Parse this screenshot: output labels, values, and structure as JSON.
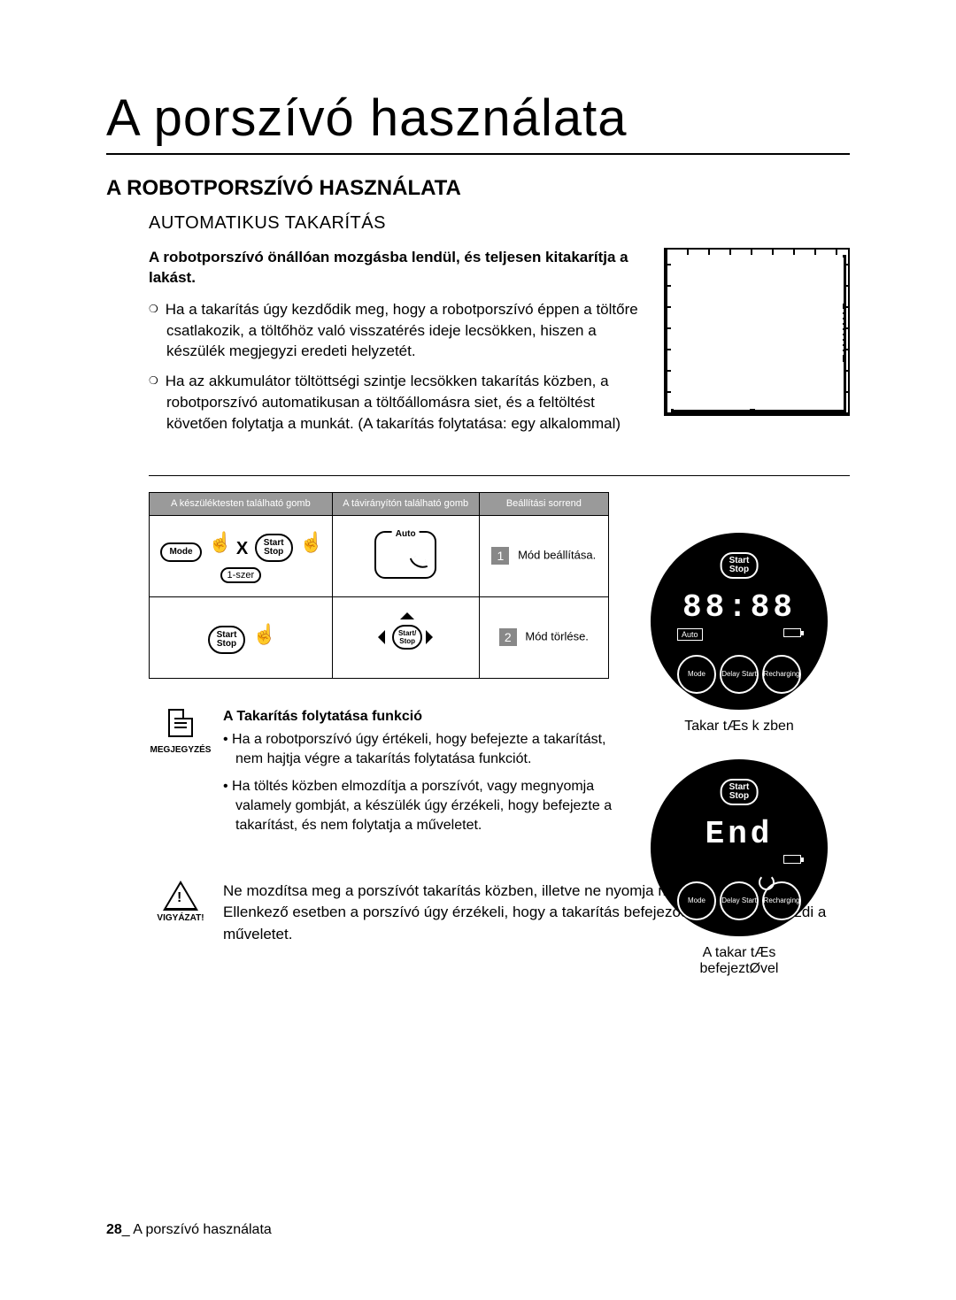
{
  "title": "A porszívó használata",
  "section_heading": "A ROBOTPORSZÍVÓ HASZNÁLATA",
  "subheading": "AUTOMATIKUS TAKARÍTÁS",
  "intro_bold": "A robotporszívó önállóan mozgásba lendül, és teljesen kitakarítja a lakást.",
  "bullet1": "Ha a takarítás úgy kezdődik meg, hogy a robotporszívó éppen a töltőre csatlakozik, a töltőhöz való visszatérés ideje lecsökken, hiszen a készülék megjegyzi eredeti helyzetét.",
  "bullet2": "Ha az akkumulátor töltöttségi szintje lecsökken takarítás közben, a robotporszívó automatikusan a töltőállomásra siet, és a feltöltést követően folytatja a munkát. (A takarítás folytatása: egy alkalommal)",
  "table": {
    "headers": {
      "main_unit": "A készüléktesten található gomb",
      "remote": "A távirányítón található gomb",
      "sequence": "Beállítási sorrend"
    },
    "row1": {
      "step_num": "1",
      "step_text": "Mód beállítása.",
      "mode_label": "Mode",
      "start_stop_label_a": "Start",
      "start_stop_label_b": "Stop",
      "plus": "X",
      "one_szer": "1-szer",
      "auto_label": "Auto"
    },
    "row2": {
      "step_num": "2",
      "step_text": "Mód törlése.",
      "start_stop_label_a": "Start",
      "start_stop_label_b": "Stop",
      "dpad_center": "Start/\nStop"
    }
  },
  "robot_displays": {
    "common": {
      "ss_a": "Start",
      "ss_b": "Stop",
      "auto": "Auto",
      "mode": "Mode",
      "delay": "Delay\nStart",
      "recharging": "Recharging"
    },
    "during": {
      "digits": "88:88",
      "caption": "Takar tÆs k zben"
    },
    "end": {
      "digits": "End",
      "caption_a": "A takar tÆs",
      "caption_b": "befejeztØvel"
    }
  },
  "note": {
    "label": "MEGJEGYZÉS",
    "title": "A Takarítás folytatása funkció",
    "items": [
      "Ha a robotporszívó úgy értékeli, hogy befejezte a takarítást, nem hajtja végre a takarítás folytatása funkciót.",
      "Ha töltés közben elmozdítja a porszívót, vagy megnyomja valamely gombját, a készülék úgy érzékeli, hogy befejezte a takarítást, és nem folytatja a műveletet."
    ]
  },
  "warning": {
    "label": "VIGYÁZAT!",
    "text": "Ne mozdítsa meg a porszívót takarítás közben, illetve ne nyomja meg egyik gombját se. Ellenkező esetben a porszívó úgy érzékeli, hogy a takarítás befejeződött, és elölről kezdi a műveletet."
  },
  "footer": {
    "page": "28",
    "label": "_ A porszívó használata"
  }
}
